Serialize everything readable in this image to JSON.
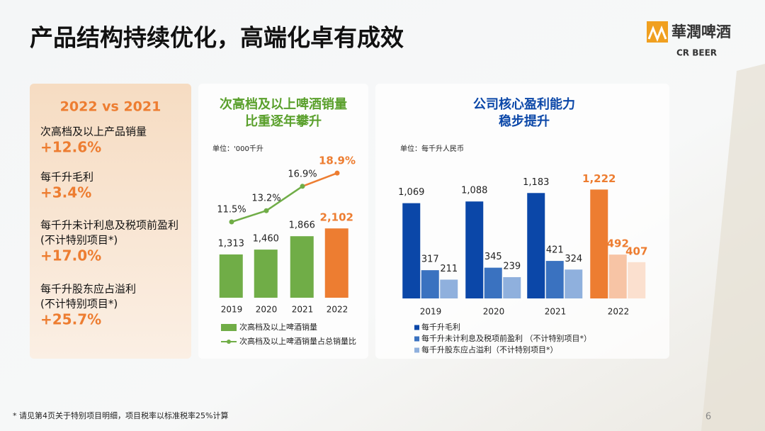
{
  "header": {
    "title": "产品结构持续优化，高端化卓有成效",
    "logo": {
      "name": "華潤啤酒",
      "subtitle": "CR BEER"
    }
  },
  "summary": {
    "title": "2022 vs 2021",
    "items": [
      {
        "label": [
          "次高档及以上产品销量"
        ],
        "value": "+12.6%"
      },
      {
        "label": [
          "每千升毛利"
        ],
        "value": "+3.4%"
      },
      {
        "label": [
          "每千升未计利息及税项前盈利",
          "(不计特别项目*)"
        ],
        "value": "+17.0%"
      },
      {
        "label": [
          "每千升股东应占溢利",
          "(不计特别项目*)"
        ],
        "value": "+25.7%"
      }
    ]
  },
  "chart_data": [
    {
      "type": "bar_line",
      "title": [
        "次高档及以上啤酒销量",
        "比重逐年攀升"
      ],
      "unit": "单位：'000千升",
      "categories": [
        "2019",
        "2020",
        "2021",
        "2022"
      ],
      "series": [
        {
          "name": "次高档及以上啤酒销量",
          "type": "bar",
          "color": "#70ad47",
          "colors": [
            "#70ad47",
            "#70ad47",
            "#70ad47",
            "#ed7d31"
          ],
          "values": [
            1313,
            1460,
            1866,
            2102
          ],
          "value_labels": [
            "1,313",
            "1,460",
            "1,866",
            "2,102"
          ]
        },
        {
          "name": "次高档及以上啤酒销量占总销量比",
          "type": "line",
          "axis": "y2",
          "color": "#70ad47",
          "colors": [
            "#70ad47",
            "#70ad47",
            "#70ad47",
            "#ed7d31"
          ],
          "values": [
            11.5,
            13.2,
            16.9,
            18.9
          ],
          "value_labels": [
            "11.5%",
            "13.2%",
            "16.9%",
            "18.9%"
          ]
        }
      ],
      "ylim": [
        0,
        4300
      ],
      "y2lim": [
        0,
        21.5
      ],
      "title_color": "#5aa02c",
      "highlight_color": "#ed7d31"
    },
    {
      "type": "bar",
      "title": [
        "公司核心盈利能力",
        "稳步提升"
      ],
      "unit": "单位：每千升人民币",
      "categories": [
        "2019",
        "2020",
        "2021",
        "2022"
      ],
      "series": [
        {
          "name": "每千升毛利",
          "color": "#0b47a8",
          "colors": [
            "#0b47a8",
            "#0b47a8",
            "#0b47a8",
            "#ed7d31"
          ],
          "values": [
            1069,
            1088,
            1183,
            1222
          ],
          "value_labels": [
            "1,069",
            "1,088",
            "1,183",
            "1,222"
          ]
        },
        {
          "name": "每千升未计利息及税项前盈利 （不计特别项目*）",
          "color": "#3a72c0",
          "colors": [
            "#3a72c0",
            "#3a72c0",
            "#3a72c0",
            "#f7c4a5"
          ],
          "values": [
            317,
            345,
            421,
            492
          ]
        },
        {
          "name": "每千升股东应占溢利（不计特别项目*）",
          "color": "#8fb0dd",
          "colors": [
            "#8fb0dd",
            "#8fb0dd",
            "#8fb0dd",
            "#fbe0cf"
          ],
          "values": [
            211,
            239,
            324,
            407
          ]
        }
      ],
      "ylim": [
        0,
        1400
      ],
      "title_color": "#0b47a8",
      "highlight_color": "#ed7d31"
    }
  ],
  "footnote": "* 请见第4页关于特别项目明细，项目税率以标准税率25%计算",
  "page_number": 6
}
